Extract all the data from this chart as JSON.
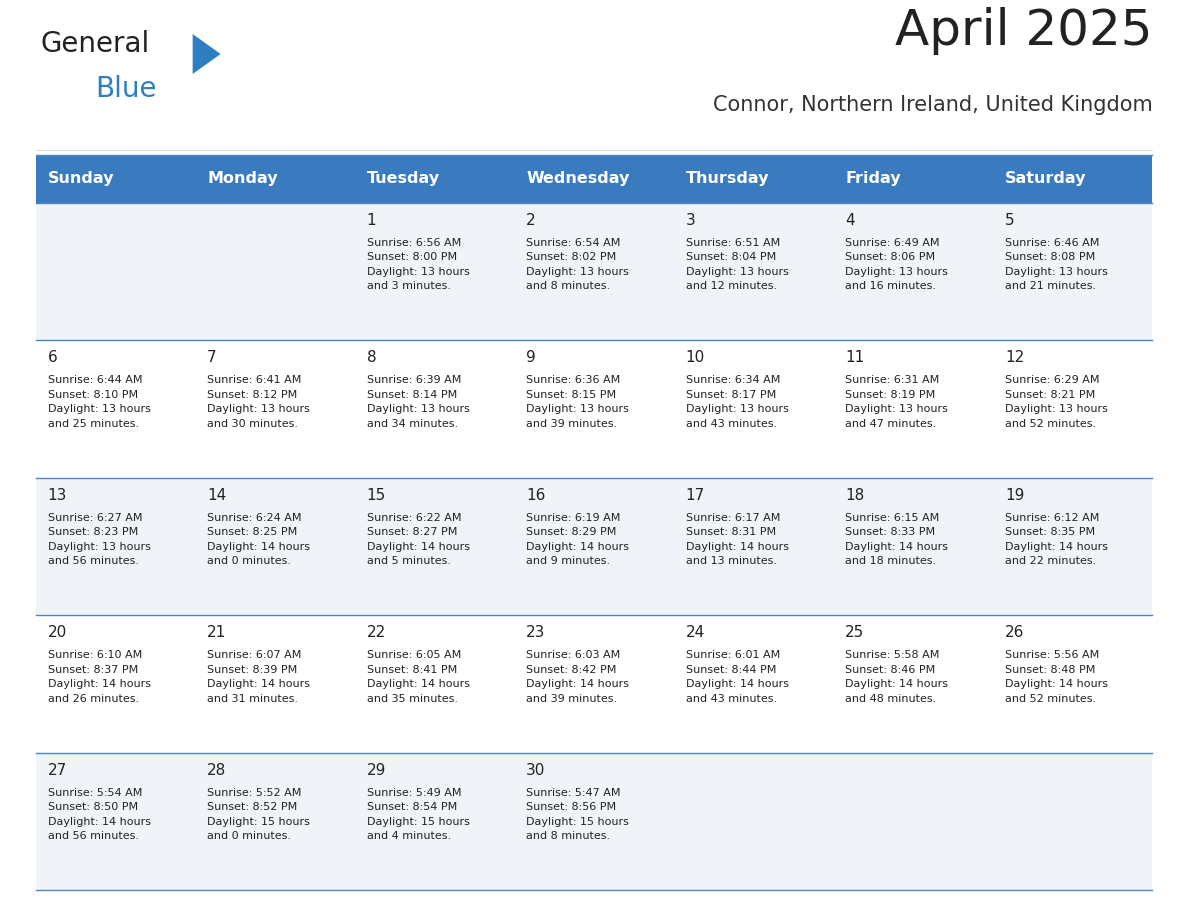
{
  "title": "April 2025",
  "subtitle": "Connor, Northern Ireland, United Kingdom",
  "header_bg": "#3a7abf",
  "header_text": "#ffffff",
  "row_bg_light": "#f0f4f8",
  "row_bg_white": "#ffffff",
  "border_color": "#4a86c8",
  "days_of_week": [
    "Sunday",
    "Monday",
    "Tuesday",
    "Wednesday",
    "Thursday",
    "Friday",
    "Saturday"
  ],
  "calendar": [
    [
      {
        "day": "",
        "info": ""
      },
      {
        "day": "",
        "info": ""
      },
      {
        "day": "1",
        "info": "Sunrise: 6:56 AM\nSunset: 8:00 PM\nDaylight: 13 hours\nand 3 minutes."
      },
      {
        "day": "2",
        "info": "Sunrise: 6:54 AM\nSunset: 8:02 PM\nDaylight: 13 hours\nand 8 minutes."
      },
      {
        "day": "3",
        "info": "Sunrise: 6:51 AM\nSunset: 8:04 PM\nDaylight: 13 hours\nand 12 minutes."
      },
      {
        "day": "4",
        "info": "Sunrise: 6:49 AM\nSunset: 8:06 PM\nDaylight: 13 hours\nand 16 minutes."
      },
      {
        "day": "5",
        "info": "Sunrise: 6:46 AM\nSunset: 8:08 PM\nDaylight: 13 hours\nand 21 minutes."
      }
    ],
    [
      {
        "day": "6",
        "info": "Sunrise: 6:44 AM\nSunset: 8:10 PM\nDaylight: 13 hours\nand 25 minutes."
      },
      {
        "day": "7",
        "info": "Sunrise: 6:41 AM\nSunset: 8:12 PM\nDaylight: 13 hours\nand 30 minutes."
      },
      {
        "day": "8",
        "info": "Sunrise: 6:39 AM\nSunset: 8:14 PM\nDaylight: 13 hours\nand 34 minutes."
      },
      {
        "day": "9",
        "info": "Sunrise: 6:36 AM\nSunset: 8:15 PM\nDaylight: 13 hours\nand 39 minutes."
      },
      {
        "day": "10",
        "info": "Sunrise: 6:34 AM\nSunset: 8:17 PM\nDaylight: 13 hours\nand 43 minutes."
      },
      {
        "day": "11",
        "info": "Sunrise: 6:31 AM\nSunset: 8:19 PM\nDaylight: 13 hours\nand 47 minutes."
      },
      {
        "day": "12",
        "info": "Sunrise: 6:29 AM\nSunset: 8:21 PM\nDaylight: 13 hours\nand 52 minutes."
      }
    ],
    [
      {
        "day": "13",
        "info": "Sunrise: 6:27 AM\nSunset: 8:23 PM\nDaylight: 13 hours\nand 56 minutes."
      },
      {
        "day": "14",
        "info": "Sunrise: 6:24 AM\nSunset: 8:25 PM\nDaylight: 14 hours\nand 0 minutes."
      },
      {
        "day": "15",
        "info": "Sunrise: 6:22 AM\nSunset: 8:27 PM\nDaylight: 14 hours\nand 5 minutes."
      },
      {
        "day": "16",
        "info": "Sunrise: 6:19 AM\nSunset: 8:29 PM\nDaylight: 14 hours\nand 9 minutes."
      },
      {
        "day": "17",
        "info": "Sunrise: 6:17 AM\nSunset: 8:31 PM\nDaylight: 14 hours\nand 13 minutes."
      },
      {
        "day": "18",
        "info": "Sunrise: 6:15 AM\nSunset: 8:33 PM\nDaylight: 14 hours\nand 18 minutes."
      },
      {
        "day": "19",
        "info": "Sunrise: 6:12 AM\nSunset: 8:35 PM\nDaylight: 14 hours\nand 22 minutes."
      }
    ],
    [
      {
        "day": "20",
        "info": "Sunrise: 6:10 AM\nSunset: 8:37 PM\nDaylight: 14 hours\nand 26 minutes."
      },
      {
        "day": "21",
        "info": "Sunrise: 6:07 AM\nSunset: 8:39 PM\nDaylight: 14 hours\nand 31 minutes."
      },
      {
        "day": "22",
        "info": "Sunrise: 6:05 AM\nSunset: 8:41 PM\nDaylight: 14 hours\nand 35 minutes."
      },
      {
        "day": "23",
        "info": "Sunrise: 6:03 AM\nSunset: 8:42 PM\nDaylight: 14 hours\nand 39 minutes."
      },
      {
        "day": "24",
        "info": "Sunrise: 6:01 AM\nSunset: 8:44 PM\nDaylight: 14 hours\nand 43 minutes."
      },
      {
        "day": "25",
        "info": "Sunrise: 5:58 AM\nSunset: 8:46 PM\nDaylight: 14 hours\nand 48 minutes."
      },
      {
        "day": "26",
        "info": "Sunrise: 5:56 AM\nSunset: 8:48 PM\nDaylight: 14 hours\nand 52 minutes."
      }
    ],
    [
      {
        "day": "27",
        "info": "Sunrise: 5:54 AM\nSunset: 8:50 PM\nDaylight: 14 hours\nand 56 minutes."
      },
      {
        "day": "28",
        "info": "Sunrise: 5:52 AM\nSunset: 8:52 PM\nDaylight: 15 hours\nand 0 minutes."
      },
      {
        "day": "29",
        "info": "Sunrise: 5:49 AM\nSunset: 8:54 PM\nDaylight: 15 hours\nand 4 minutes."
      },
      {
        "day": "30",
        "info": "Sunrise: 5:47 AM\nSunset: 8:56 PM\nDaylight: 15 hours\nand 8 minutes."
      },
      {
        "day": "",
        "info": ""
      },
      {
        "day": "",
        "info": ""
      },
      {
        "day": "",
        "info": ""
      }
    ]
  ],
  "logo_color_general": "#222222",
  "logo_color_blue": "#2e7fc1",
  "logo_triangle_color": "#2e7fc1",
  "title_color": "#222222",
  "subtitle_color": "#333333",
  "cell_text_color": "#222222",
  "fig_width": 11.88,
  "fig_height": 9.18,
  "dpi": 100
}
